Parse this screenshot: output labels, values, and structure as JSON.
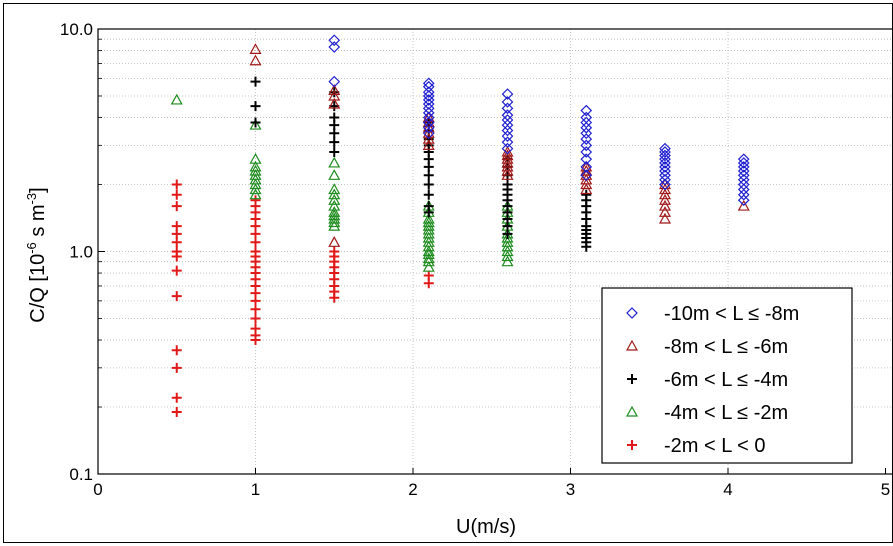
{
  "chart_data": {
    "type": "scatter",
    "xlabel": "U(m/s)",
    "ylabel_main": "C/Q [10",
    "ylabel_exp1": "-6",
    "ylabel_mid": " s m",
    "ylabel_exp2": "-3",
    "ylabel_end": "]",
    "xlim": [
      0,
      5
    ],
    "ylim": [
      0.1,
      10.0
    ],
    "yscale": "log",
    "grid": true,
    "legend_position": "lower-right",
    "x_ticks": [
      "0",
      "1",
      "2",
      "3",
      "4",
      "5"
    ],
    "y_ticks": [
      "0.1",
      "1.0",
      "10.0"
    ],
    "series": [
      {
        "name": "-10m < L ≤ -8m",
        "marker": "diamond",
        "color": "#1f1fd0",
        "points": [
          [
            1.5,
            8.9
          ],
          [
            1.5,
            8.3
          ],
          [
            1.5,
            5.8
          ],
          [
            2.1,
            5.7
          ],
          [
            2.1,
            5.5
          ],
          [
            2.1,
            5.2
          ],
          [
            2.1,
            5.0
          ],
          [
            2.1,
            4.8
          ],
          [
            2.1,
            4.6
          ],
          [
            2.1,
            4.4
          ],
          [
            2.1,
            4.2
          ],
          [
            2.1,
            4.0
          ],
          [
            2.1,
            3.8
          ],
          [
            2.1,
            3.6
          ],
          [
            2.1,
            3.4
          ],
          [
            2.6,
            5.1
          ],
          [
            2.6,
            4.7
          ],
          [
            2.6,
            4.4
          ],
          [
            2.6,
            4.1
          ],
          [
            2.6,
            3.9
          ],
          [
            2.6,
            3.7
          ],
          [
            2.6,
            3.5
          ],
          [
            2.6,
            3.3
          ],
          [
            2.6,
            3.1
          ],
          [
            2.6,
            2.9
          ],
          [
            3.1,
            4.3
          ],
          [
            3.1,
            4.0
          ],
          [
            3.1,
            3.8
          ],
          [
            3.1,
            3.6
          ],
          [
            3.1,
            3.4
          ],
          [
            3.1,
            3.2
          ],
          [
            3.1,
            3.0
          ],
          [
            3.1,
            2.8
          ],
          [
            3.1,
            2.6
          ],
          [
            3.1,
            2.4
          ],
          [
            3.1,
            2.2
          ],
          [
            3.6,
            2.9
          ],
          [
            3.6,
            2.8
          ],
          [
            3.6,
            2.7
          ],
          [
            3.6,
            2.6
          ],
          [
            3.6,
            2.5
          ],
          [
            3.6,
            2.4
          ],
          [
            3.6,
            2.3
          ],
          [
            3.6,
            2.2
          ],
          [
            3.6,
            2.1
          ],
          [
            3.6,
            2.0
          ],
          [
            4.1,
            2.6
          ],
          [
            4.1,
            2.5
          ],
          [
            4.1,
            2.4
          ],
          [
            4.1,
            2.3
          ],
          [
            4.1,
            2.2
          ],
          [
            4.1,
            2.1
          ],
          [
            4.1,
            2.0
          ],
          [
            4.1,
            1.9
          ],
          [
            4.1,
            1.8
          ],
          [
            4.1,
            1.7
          ]
        ]
      },
      {
        "name": "-8m < L ≤ -6m",
        "marker": "triangle",
        "color": "#a01818",
        "points": [
          [
            1.0,
            8.1
          ],
          [
            1.0,
            7.2
          ],
          [
            1.5,
            5.3
          ],
          [
            1.5,
            5.0
          ],
          [
            1.5,
            4.6
          ],
          [
            1.5,
            1.1
          ],
          [
            2.1,
            4.0
          ],
          [
            2.1,
            3.8
          ],
          [
            2.1,
            3.6
          ],
          [
            2.1,
            3.4
          ],
          [
            2.1,
            3.2
          ],
          [
            2.1,
            3.0
          ],
          [
            2.6,
            2.8
          ],
          [
            2.6,
            2.7
          ],
          [
            2.6,
            2.6
          ],
          [
            2.6,
            2.5
          ],
          [
            2.6,
            2.4
          ],
          [
            2.6,
            2.3
          ],
          [
            2.6,
            2.2
          ],
          [
            3.1,
            2.4
          ],
          [
            3.1,
            2.3
          ],
          [
            3.1,
            2.2
          ],
          [
            3.1,
            2.1
          ],
          [
            3.1,
            2.0
          ],
          [
            3.1,
            1.9
          ],
          [
            3.6,
            2.0
          ],
          [
            3.6,
            1.9
          ],
          [
            3.6,
            1.8
          ],
          [
            3.6,
            1.7
          ],
          [
            3.6,
            1.6
          ],
          [
            3.6,
            1.5
          ],
          [
            3.6,
            1.4
          ],
          [
            4.1,
            1.6
          ]
        ]
      },
      {
        "name": "-6m < L ≤ -4m",
        "marker": "plus",
        "color": "#000000",
        "points": [
          [
            1.0,
            5.8
          ],
          [
            1.0,
            4.5
          ],
          [
            1.0,
            3.8
          ],
          [
            1.5,
            5.2
          ],
          [
            1.5,
            4.5
          ],
          [
            1.5,
            4.0
          ],
          [
            1.5,
            3.7
          ],
          [
            1.5,
            3.4
          ],
          [
            1.5,
            3.1
          ],
          [
            1.5,
            2.8
          ],
          [
            2.1,
            3.8
          ],
          [
            2.1,
            3.5
          ],
          [
            2.1,
            3.2
          ],
          [
            2.1,
            3.0
          ],
          [
            2.1,
            2.8
          ],
          [
            2.1,
            2.6
          ],
          [
            2.1,
            2.4
          ],
          [
            2.1,
            2.2
          ],
          [
            2.1,
            2.0
          ],
          [
            2.1,
            1.8
          ],
          [
            2.1,
            1.6
          ],
          [
            2.1,
            1.5
          ],
          [
            2.6,
            2.6
          ],
          [
            2.6,
            2.4
          ],
          [
            2.6,
            2.2
          ],
          [
            2.6,
            2.0
          ],
          [
            2.6,
            1.9
          ],
          [
            2.6,
            1.8
          ],
          [
            2.6,
            1.7
          ],
          [
            2.6,
            1.6
          ],
          [
            2.6,
            1.5
          ],
          [
            2.6,
            1.4
          ],
          [
            2.6,
            1.3
          ],
          [
            2.6,
            1.2
          ],
          [
            3.1,
            1.8
          ],
          [
            3.1,
            1.7
          ],
          [
            3.1,
            1.6
          ],
          [
            3.1,
            1.5
          ],
          [
            3.1,
            1.4
          ],
          [
            3.1,
            1.3
          ],
          [
            3.1,
            1.25
          ],
          [
            3.1,
            1.2
          ],
          [
            3.1,
            1.15
          ],
          [
            3.1,
            1.1
          ],
          [
            3.1,
            1.05
          ]
        ]
      },
      {
        "name": "-4m < L ≤ -2m",
        "marker": "triangle",
        "color": "#1e8c1e",
        "points": [
          [
            0.5,
            4.8
          ],
          [
            1.0,
            3.7
          ],
          [
            1.0,
            2.6
          ],
          [
            1.0,
            2.4
          ],
          [
            1.0,
            2.3
          ],
          [
            1.0,
            2.2
          ],
          [
            1.0,
            2.1
          ],
          [
            1.0,
            2.0
          ],
          [
            1.0,
            1.9
          ],
          [
            1.0,
            1.8
          ],
          [
            1.5,
            2.5
          ],
          [
            1.5,
            2.2
          ],
          [
            1.5,
            1.9
          ],
          [
            1.5,
            1.8
          ],
          [
            1.5,
            1.7
          ],
          [
            1.5,
            1.6
          ],
          [
            1.5,
            1.5
          ],
          [
            1.5,
            1.45
          ],
          [
            1.5,
            1.4
          ],
          [
            1.5,
            1.35
          ],
          [
            1.5,
            1.3
          ],
          [
            2.1,
            1.6
          ],
          [
            2.1,
            1.5
          ],
          [
            2.1,
            1.4
          ],
          [
            2.1,
            1.35
          ],
          [
            2.1,
            1.3
          ],
          [
            2.1,
            1.25
          ],
          [
            2.1,
            1.2
          ],
          [
            2.1,
            1.15
          ],
          [
            2.1,
            1.1
          ],
          [
            2.1,
            1.05
          ],
          [
            2.1,
            1.0
          ],
          [
            2.1,
            0.97
          ],
          [
            2.1,
            0.93
          ],
          [
            2.1,
            0.9
          ],
          [
            2.1,
            0.85
          ],
          [
            2.6,
            1.6
          ],
          [
            2.6,
            1.5
          ],
          [
            2.6,
            1.4
          ],
          [
            2.6,
            1.3
          ],
          [
            2.6,
            1.2
          ],
          [
            2.6,
            1.15
          ],
          [
            2.6,
            1.1
          ],
          [
            2.6,
            1.05
          ],
          [
            2.6,
            1.0
          ],
          [
            2.6,
            0.95
          ],
          [
            2.6,
            0.9
          ]
        ]
      },
      {
        "name": "-2m < L <  0",
        "marker": "plus",
        "color": "#e01818",
        "points": [
          [
            0.5,
            2.0
          ],
          [
            0.5,
            1.8
          ],
          [
            0.5,
            1.6
          ],
          [
            0.5,
            1.3
          ],
          [
            0.5,
            1.2
          ],
          [
            0.5,
            1.1
          ],
          [
            0.5,
            1.0
          ],
          [
            0.5,
            0.95
          ],
          [
            0.5,
            0.82
          ],
          [
            0.5,
            0.63
          ],
          [
            0.5,
            0.36
          ],
          [
            0.5,
            0.3
          ],
          [
            0.5,
            0.22
          ],
          [
            0.5,
            0.19
          ],
          [
            1.0,
            1.7
          ],
          [
            1.0,
            1.6
          ],
          [
            1.0,
            1.5
          ],
          [
            1.0,
            1.4
          ],
          [
            1.0,
            1.3
          ],
          [
            1.0,
            1.2
          ],
          [
            1.0,
            1.1
          ],
          [
            1.0,
            1.0
          ],
          [
            1.0,
            0.95
          ],
          [
            1.0,
            0.9
          ],
          [
            1.0,
            0.85
          ],
          [
            1.0,
            0.8
          ],
          [
            1.0,
            0.75
          ],
          [
            1.0,
            0.7
          ],
          [
            1.0,
            0.65
          ],
          [
            1.0,
            0.6
          ],
          [
            1.0,
            0.55
          ],
          [
            1.0,
            0.5
          ],
          [
            1.0,
            0.45
          ],
          [
            1.0,
            0.42
          ],
          [
            1.0,
            0.4
          ],
          [
            1.5,
            1.0
          ],
          [
            1.5,
            0.95
          ],
          [
            1.5,
            0.9
          ],
          [
            1.5,
            0.85
          ],
          [
            1.5,
            0.8
          ],
          [
            1.5,
            0.75
          ],
          [
            1.5,
            0.7
          ],
          [
            1.5,
            0.66
          ],
          [
            1.5,
            0.62
          ],
          [
            2.1,
            0.78
          ],
          [
            2.1,
            0.72
          ]
        ]
      }
    ]
  }
}
